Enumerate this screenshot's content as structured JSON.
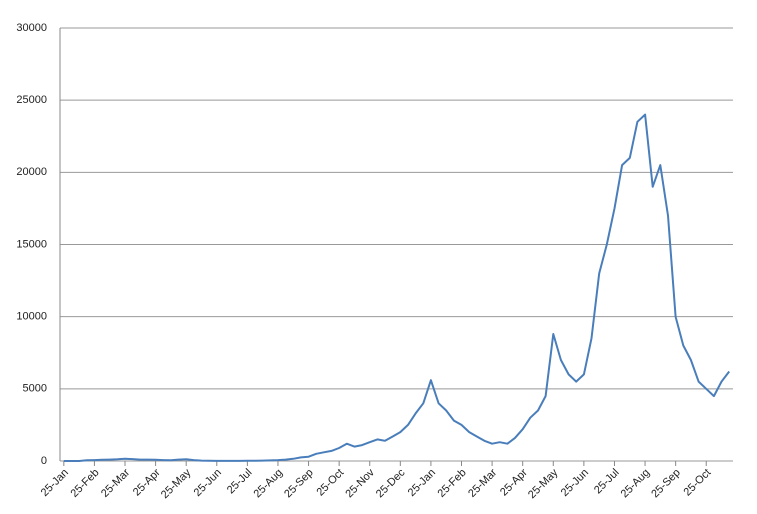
{
  "chart_data": {
    "type": "line",
    "categories": [
      "25-Jan",
      null,
      null,
      null,
      "25-Feb",
      null,
      null,
      null,
      "25-Mar",
      null,
      null,
      null,
      "25-Apr",
      null,
      null,
      null,
      "25-May",
      null,
      null,
      null,
      "25-Jun",
      null,
      null,
      null,
      "25-Jul",
      null,
      null,
      null,
      "25-Aug",
      null,
      null,
      null,
      "25-Sep",
      null,
      null,
      null,
      "25-Oct",
      null,
      null,
      null,
      "25-Nov",
      null,
      null,
      null,
      "25-Dec",
      null,
      null,
      null,
      "25-Jan",
      null,
      null,
      null,
      "25-Feb",
      null,
      null,
      null,
      "25-Mar",
      null,
      null,
      null,
      "25-Apr",
      null,
      null,
      null,
      "25-May",
      null,
      null,
      null,
      "25-Jun",
      null,
      null,
      null,
      "25-Jul",
      null,
      null,
      null,
      "25-Aug",
      null,
      null,
      null,
      "25-Sep",
      null,
      null,
      null,
      "25-Oct",
      null,
      null,
      null
    ],
    "series": [
      {
        "color": "#4a7ebb",
        "values": [
          0,
          0,
          0,
          50,
          60,
          80,
          100,
          120,
          150,
          130,
          100,
          100,
          80,
          60,
          50,
          100,
          120,
          60,
          30,
          20,
          10,
          10,
          10,
          10,
          20,
          20,
          30,
          40,
          60,
          100,
          150,
          250,
          300,
          500,
          600,
          700,
          900,
          1200,
          1000,
          1100,
          1300,
          1500,
          1400,
          1700,
          2000,
          2500,
          3300,
          4000,
          5600,
          4000,
          3500,
          2800,
          2500,
          2000,
          1700,
          1400,
          1200,
          1300,
          1200,
          1600,
          2200,
          3000,
          3500,
          4500,
          8800,
          7000,
          6000,
          5500,
          6000,
          8500,
          13000,
          15000,
          17500,
          20500,
          21000,
          23500,
          24000,
          19000,
          20500,
          17000,
          10000,
          8000,
          7000,
          5500,
          5000,
          4500,
          5500,
          6200
        ]
      }
    ],
    "ylim": [
      0,
      30000
    ],
    "yticks": [
      0,
      5000,
      10000,
      15000,
      20000,
      25000,
      30000
    ],
    "grid": true
  }
}
